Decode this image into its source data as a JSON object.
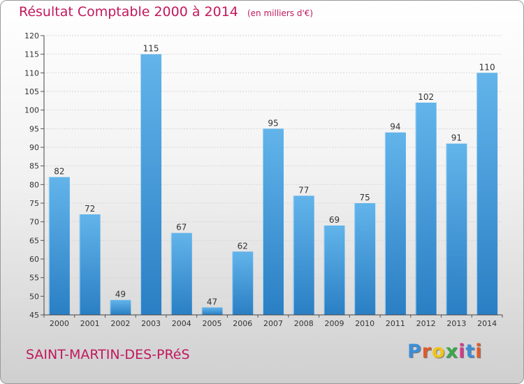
{
  "colors": {
    "accent": "#c2185b",
    "bar_light": "#62b4ea",
    "bar_dark": "#2a7fc4",
    "logo": [
      "#3b8ed8",
      "#e05a2a",
      "#f0c419",
      "#3ca64a",
      "#d23b8a",
      "#3b8ed8",
      "#e05a2a"
    ]
  },
  "header": {
    "title": "Résultat Comptable 2000 à 2014",
    "subtitle": "(en milliers d'€)"
  },
  "footer": {
    "town": "SAINT-MARTIN-DES-PRéS",
    "logo_text": "Proxiti",
    "logo_letters": [
      "P",
      "r",
      "o",
      "x",
      "i",
      "t",
      "i"
    ]
  },
  "chart_data": {
    "type": "bar",
    "title": "Résultat Comptable 2000 à 2014",
    "subtitle": "(en milliers d'€)",
    "xlabel": "",
    "ylabel": "",
    "categories": [
      "2000",
      "2001",
      "2002",
      "2003",
      "2004",
      "2005",
      "2006",
      "2007",
      "2008",
      "2009",
      "2010",
      "2011",
      "2012",
      "2013",
      "2014"
    ],
    "values": [
      82,
      72,
      49,
      115,
      67,
      47,
      62,
      95,
      77,
      69,
      75,
      94,
      102,
      91,
      110
    ],
    "ylim": [
      45,
      120
    ],
    "yticks": [
      45,
      50,
      55,
      60,
      65,
      70,
      75,
      80,
      85,
      90,
      95,
      100,
      105,
      110,
      115,
      120
    ],
    "grid": true,
    "data_labels": true,
    "legend": "none"
  }
}
